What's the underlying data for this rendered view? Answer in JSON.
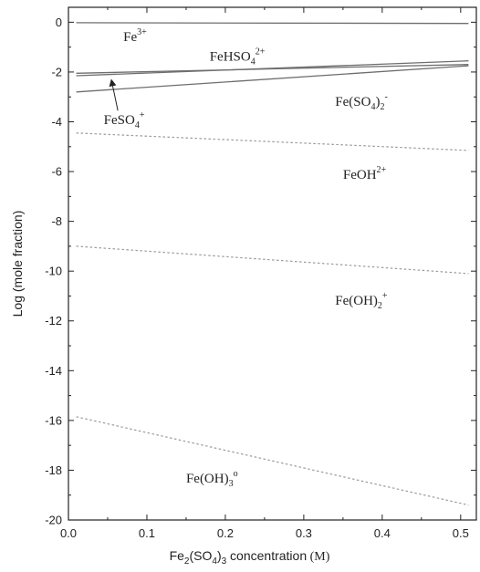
{
  "chart_data": {
    "type": "line",
    "title": "",
    "xlabel": {
      "prefix": "Fe",
      "sub1": "2",
      "mid": "(SO",
      "sub2": "4",
      "close": ")",
      "sub3": "3",
      "suffix": " concentration",
      "unit": " (M)"
    },
    "ylabel": "Log (mole fraction)",
    "xlim": [
      0.0,
      0.52
    ],
    "ylim": [
      -20,
      0.6
    ],
    "xticks": [
      0.0,
      0.1,
      0.2,
      0.3,
      0.4,
      0.5
    ],
    "xtick_labels": [
      "0.0",
      "0.1",
      "0.2",
      "0.3",
      "0.4",
      "0.5"
    ],
    "yticks": [
      0,
      -2,
      -4,
      -6,
      -8,
      -10,
      -12,
      -14,
      -16,
      -18,
      -20
    ],
    "ytick_labels": [
      "0",
      "-2",
      "-4",
      "-6",
      "-8",
      "-10",
      "-12",
      "-14",
      "-16",
      "-18",
      "-20"
    ],
    "grid": false,
    "series": [
      {
        "key": "fe3",
        "style": "solid",
        "x": [
          0.01,
          0.51
        ],
        "y": [
          -0.02,
          -0.05
        ]
      },
      {
        "key": "fehso4",
        "style": "solid",
        "x": [
          0.01,
          0.51
        ],
        "y": [
          -2.15,
          -1.55
        ]
      },
      {
        "key": "feso4",
        "style": "solid",
        "x": [
          0.01,
          0.51
        ],
        "y": [
          -2.05,
          -1.7
        ]
      },
      {
        "key": "feso42",
        "style": "solid",
        "x": [
          0.01,
          0.51
        ],
        "y": [
          -2.8,
          -1.75
        ]
      },
      {
        "key": "feoh",
        "style": "dotted",
        "x": [
          0.01,
          0.51
        ],
        "y": [
          -4.45,
          -5.15
        ]
      },
      {
        "key": "feoh2",
        "style": "dotted",
        "x": [
          0.01,
          0.51
        ],
        "y": [
          -9.0,
          -10.1
        ]
      },
      {
        "key": "feoh3",
        "style": "dotted",
        "x": [
          0.01,
          0.51
        ],
        "y": [
          -15.85,
          -19.4
        ]
      }
    ],
    "annotations": [
      {
        "key": "fe3",
        "parts": [
          {
            "t": "Fe"
          },
          {
            "t": "3+",
            "s": "sup"
          }
        ],
        "x": 0.07,
        "y": -0.75
      },
      {
        "key": "fehso4",
        "parts": [
          {
            "t": "FeHSO"
          },
          {
            "t": "4",
            "s": "sub"
          },
          {
            "t": "2+",
            "s": "sup"
          }
        ],
        "x": 0.18,
        "y": -1.55
      },
      {
        "key": "feso4",
        "parts": [
          {
            "t": "FeSO"
          },
          {
            "t": "4",
            "s": "sub"
          },
          {
            "t": "+",
            "s": "sup"
          }
        ],
        "x": 0.045,
        "y": -4.1
      },
      {
        "key": "feso42",
        "parts": [
          {
            "t": "Fe(SO"
          },
          {
            "t": "4",
            "s": "sub"
          },
          {
            "t": ")"
          },
          {
            "t": "2",
            "s": "sub"
          },
          {
            "t": "-",
            "s": "sup"
          }
        ],
        "x": 0.34,
        "y": -3.35
      },
      {
        "key": "feoh",
        "parts": [
          {
            "t": "FeOH"
          },
          {
            "t": "2+",
            "s": "sup"
          }
        ],
        "x": 0.35,
        "y": -6.3
      },
      {
        "key": "feoh2",
        "parts": [
          {
            "t": "Fe(OH)"
          },
          {
            "t": "2",
            "s": "sub"
          },
          {
            "t": "+",
            "s": "sup"
          }
        ],
        "x": 0.34,
        "y": -11.35
      },
      {
        "key": "feoh3",
        "parts": [
          {
            "t": "Fe(OH)"
          },
          {
            "t": "3",
            "s": "sub"
          },
          {
            "t": "o",
            "s": "sup"
          }
        ],
        "x": 0.15,
        "y": -18.5
      }
    ],
    "arrow": {
      "from": [
        0.063,
        -3.55
      ],
      "to": [
        0.055,
        -2.35
      ]
    }
  }
}
